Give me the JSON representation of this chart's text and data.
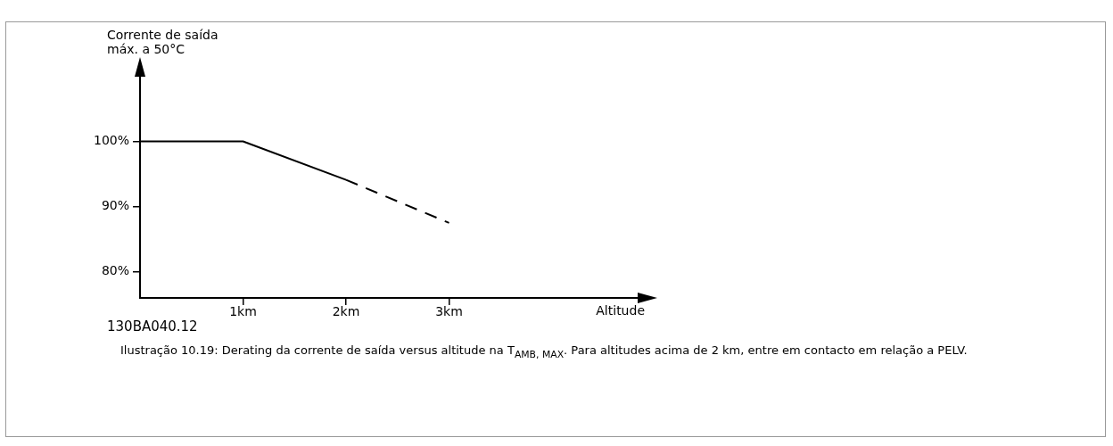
{
  "chart_data": {
    "type": "line",
    "ylabel": "Corrente de saída\nmáx. a 50°C",
    "xlabel": "Altitude",
    "series": [
      {
        "x": [
          0,
          1,
          2
        ],
        "values": [
          100,
          100,
          94.1
        ],
        "color": "#000000",
        "line_style": "solid"
      },
      {
        "x": [
          2,
          3
        ],
        "values": [
          94.1,
          87.5
        ],
        "color": "#000000",
        "line_style": "dashed"
      }
    ],
    "xlim": [
      0,
      4.9
    ],
    "xticks": [
      {
        "value": 1,
        "label": "1km"
      },
      {
        "value": 2,
        "label": "2km"
      },
      {
        "value": 3,
        "label": "3km"
      }
    ],
    "ylim": [
      76,
      111
    ],
    "yticks": [
      {
        "value": 80,
        "label": "80%"
      },
      {
        "value": 90,
        "label": "90%"
      },
      {
        "value": 100,
        "label": "100%"
      }
    ],
    "grid": false,
    "legend": false,
    "marker": "none",
    "annotations": [
      "130BA040.12",
      "Ilustração 10.19: Derating da corrente de saída versus altitude na T$_{AMB, MAX}$. Para altitudes acima de 2 km, entre em contacto em relação a PELV."
    ]
  }
}
